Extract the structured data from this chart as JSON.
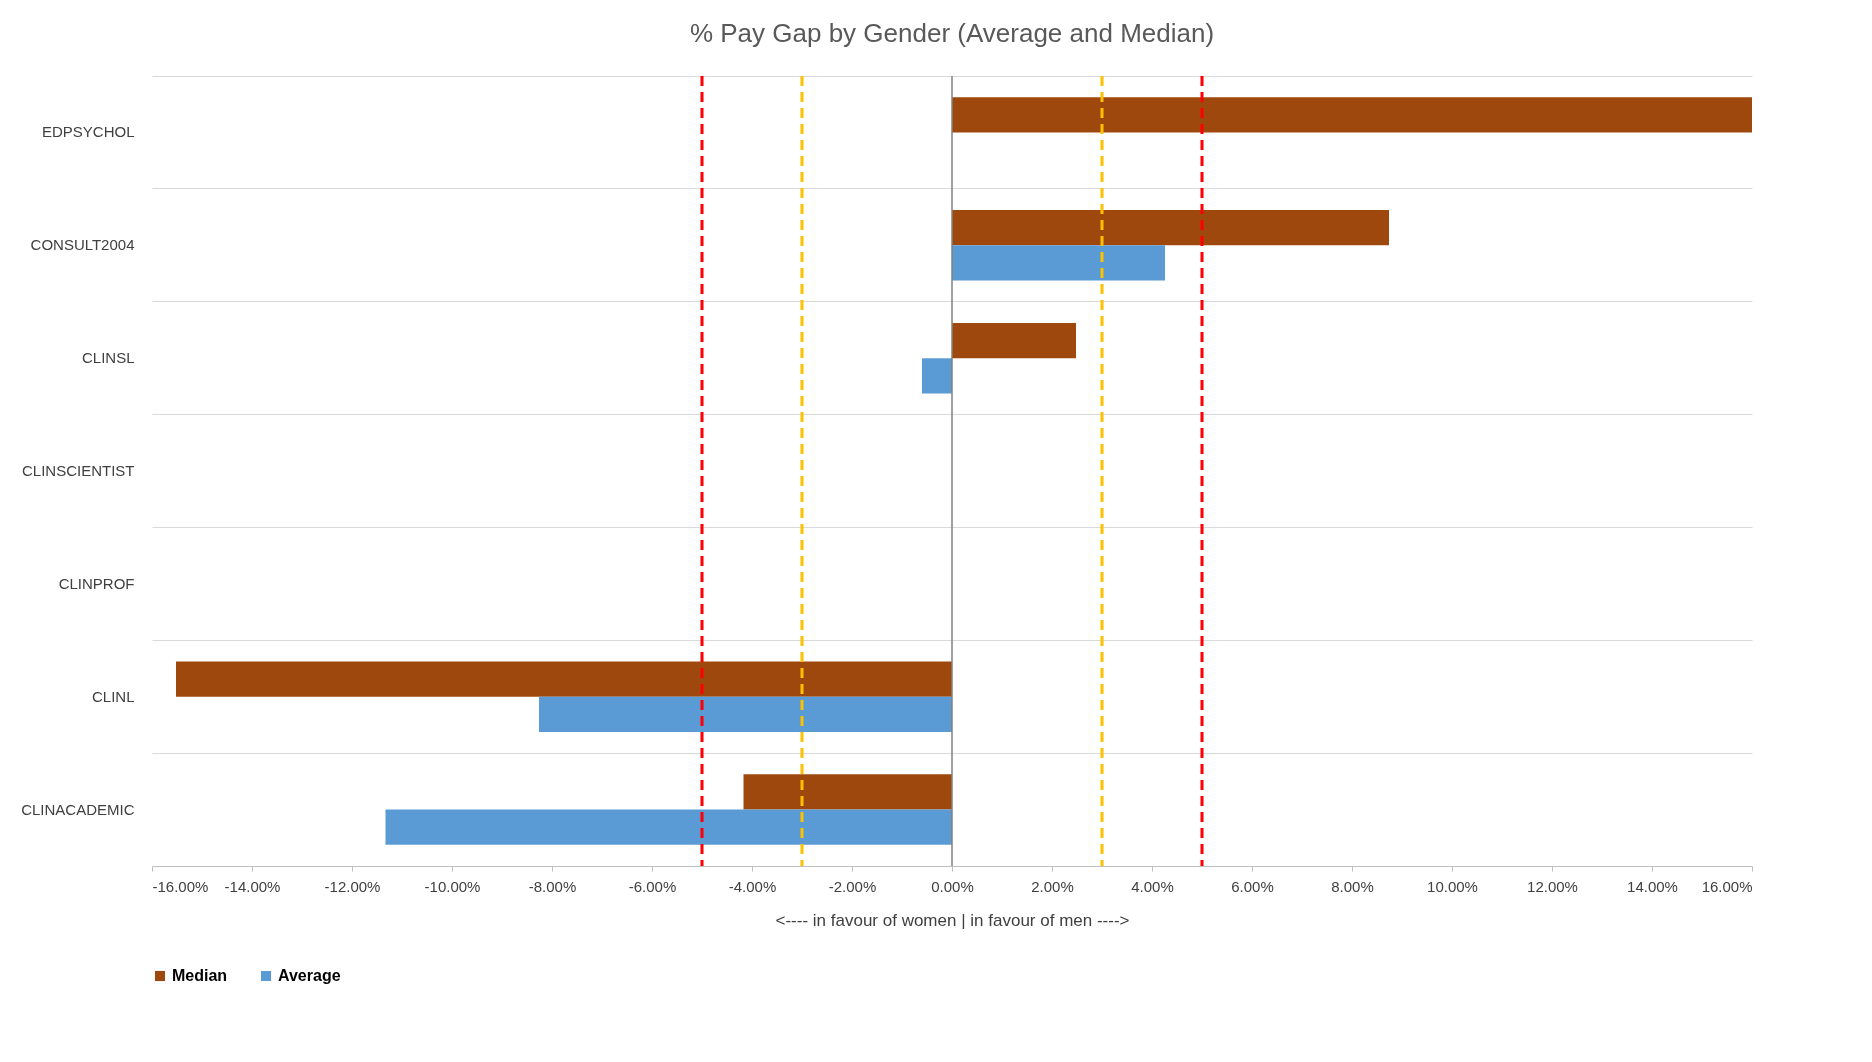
{
  "chart_data": {
    "type": "bar",
    "orientation": "horizontal",
    "title": "% Pay Gap by Gender (Average and Median)",
    "xlabel": "<----  in favour of women      |       in favour of men  ---->",
    "categories": [
      "EDPSYCHOL",
      "CONSULT2004",
      "CLINSL",
      "CLINSCIENTIST",
      "CLINPROF",
      "CLINL",
      "CLINACADEMIC"
    ],
    "series": [
      {
        "name": "Median",
        "color": "#9e480e",
        "values": [
          16,
          8.74,
          2.48,
          null,
          null,
          -15.52,
          -4.17
        ]
      },
      {
        "name": "Average",
        "color": "#5b9bd5",
        "values": [
          null,
          4.26,
          -0.6,
          null,
          null,
          -8.26,
          -11.33
        ]
      }
    ],
    "xlim": [
      -16,
      16
    ],
    "xticks": [
      {
        "value": -16,
        "label": "-16.00%"
      },
      {
        "value": -14,
        "label": "-14.00%"
      },
      {
        "value": -12,
        "label": "-12.00%"
      },
      {
        "value": -10,
        "label": "-10.00%"
      },
      {
        "value": -8,
        "label": "-8.00%"
      },
      {
        "value": -6,
        "label": "-6.00%"
      },
      {
        "value": -4,
        "label": "-4.00%"
      },
      {
        "value": -2,
        "label": "-2.00%"
      },
      {
        "value": 0,
        "label": "0.00%"
      },
      {
        "value": 2,
        "label": "2.00%"
      },
      {
        "value": 4,
        "label": "4.00%"
      },
      {
        "value": 6,
        "label": "6.00%"
      },
      {
        "value": 8,
        "label": "8.00%"
      },
      {
        "value": 10,
        "label": "10.00%"
      },
      {
        "value": 12,
        "label": "12.00%"
      },
      {
        "value": 14,
        "label": "14.00%"
      },
      {
        "value": 16,
        "label": "16.00%"
      }
    ],
    "ref_lines": [
      {
        "axis": "x",
        "value": -5,
        "color": "#ff0000",
        "line_style": "dashed"
      },
      {
        "axis": "x",
        "value": -3,
        "color": "#ffc000",
        "line_style": "dashed"
      },
      {
        "axis": "x",
        "value": 0,
        "color": "#808080",
        "line_style": "solid"
      },
      {
        "axis": "x",
        "value": 3,
        "color": "#ffc000",
        "line_style": "dashed"
      },
      {
        "axis": "x",
        "value": 5,
        "color": "#ff0000",
        "line_style": "dashed"
      }
    ],
    "grid": "y",
    "legend": "bottom"
  }
}
